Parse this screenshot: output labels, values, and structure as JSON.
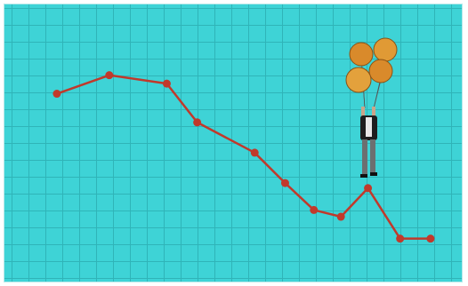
{
  "chart_data": {
    "type": "line",
    "x": [
      3.1,
      6.2,
      9.6,
      11.4,
      14.8,
      16.6,
      18.3,
      19.9,
      21.5,
      23.4,
      25.2
    ],
    "xlim": [
      0,
      27.1
    ],
    "ylim": [
      0,
      16.5
    ],
    "series": [
      {
        "color": "#c1392b",
        "values": [
          11.2,
          12.3,
          11.8,
          9.5,
          7.7,
          5.9,
          4.3,
          3.9,
          5.6,
          2.6,
          2.6
        ]
      }
    ]
  }
}
